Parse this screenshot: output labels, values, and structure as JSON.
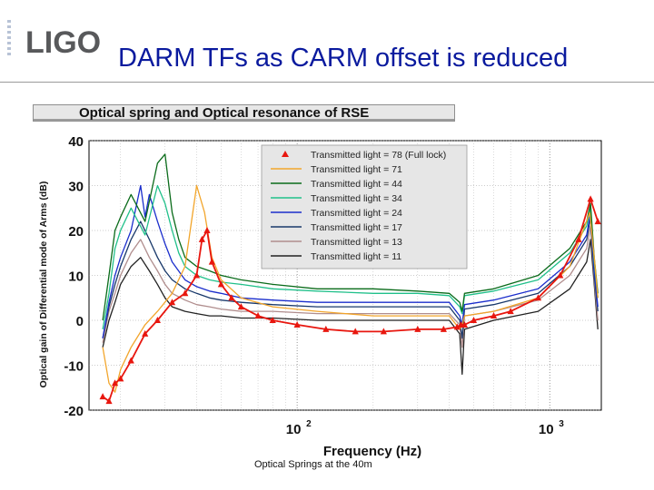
{
  "slide": {
    "logo_text": "LIGO",
    "title": "DARM TFs as CARM offset is reduced",
    "caption": "Optical Springs at the 40m"
  },
  "chart_data": {
    "type": "line",
    "title": "Optical spring and Optical resonance of RSE",
    "xlabel": "Frequency (Hz)",
    "ylabel": "Optical gain of Differential mode of Arms (dB)",
    "xscale": "log",
    "xlim": [
      15,
      1600
    ],
    "ylim": [
      -20,
      40
    ],
    "yticks": [
      40,
      30,
      20,
      10,
      0,
      -10,
      -20
    ],
    "xticks": [
      {
        "value": 100,
        "label": "10",
        "exp": "2"
      },
      {
        "value": 1000,
        "label": "10",
        "exp": "3"
      }
    ],
    "grid": true,
    "legend_position": "top-right",
    "series": [
      {
        "name": "Transmitted light = 78 (Full lock)",
        "color": "#e8170f",
        "marker": "triangle",
        "x": [
          17,
          18,
          19,
          20,
          22,
          25,
          28,
          32,
          36,
          40,
          42,
          44,
          46,
          50,
          55,
          60,
          70,
          80,
          100,
          130,
          170,
          220,
          300,
          380,
          430,
          445,
          460,
          500,
          600,
          700,
          900,
          1100,
          1300,
          1450,
          1550
        ],
        "y": [
          -17,
          -18,
          -14,
          -13,
          -9,
          -3,
          0,
          4,
          6,
          10,
          18,
          20,
          13,
          8,
          5,
          3,
          1,
          0,
          -1,
          -2,
          -2.5,
          -2.5,
          -2,
          -2,
          -1.5,
          -1,
          -1,
          0,
          1,
          2,
          5,
          10,
          18,
          27,
          22
        ]
      },
      {
        "name": "Transmitted light = 71",
        "color": "#f2a52b",
        "marker": "none",
        "x": [
          17,
          18,
          19,
          20,
          22,
          25,
          28,
          32,
          36,
          40,
          43,
          46,
          50,
          60,
          80,
          120,
          200,
          300,
          400,
          440,
          450,
          460,
          600,
          900,
          1200,
          1440,
          1500,
          1550
        ],
        "y": [
          -6,
          -14,
          -16,
          -11,
          -6,
          -1,
          2,
          6,
          12,
          30,
          24,
          14,
          9,
          5,
          3,
          2,
          1,
          1,
          1,
          -2,
          -1,
          1,
          2,
          5,
          12,
          24,
          14,
          5
        ]
      },
      {
        "name": "Transmitted light = 44",
        "color": "#0a6b1a",
        "marker": "none",
        "x": [
          17,
          18,
          19,
          20,
          22,
          25,
          28,
          30,
          32,
          34,
          36,
          40,
          45,
          50,
          60,
          80,
          120,
          200,
          300,
          400,
          440,
          450,
          460,
          600,
          900,
          1200,
          1400,
          1450,
          1500,
          1550
        ],
        "y": [
          0,
          10,
          20,
          23,
          28,
          22,
          35,
          37,
          24,
          18,
          14,
          12,
          11,
          10,
          9,
          8,
          7,
          7,
          6.5,
          6,
          4,
          2,
          6,
          7,
          10,
          16,
          22,
          26,
          14,
          6
        ]
      },
      {
        "name": "Transmitted light = 34",
        "color": "#20c08a",
        "marker": "none",
        "x": [
          17,
          18,
          19,
          20,
          22,
          25,
          28,
          30,
          32,
          34,
          36,
          40,
          45,
          50,
          60,
          80,
          120,
          200,
          300,
          400,
          440,
          450,
          460,
          600,
          900,
          1200,
          1400,
          1450,
          1500,
          1550
        ],
        "y": [
          -2,
          6,
          16,
          20,
          25,
          19,
          30,
          26,
          20,
          15,
          12,
          10,
          9,
          8.5,
          8,
          7,
          6.5,
          6,
          6,
          5.5,
          3,
          1.5,
          5.5,
          6.5,
          9,
          15,
          21,
          25,
          13,
          5
        ]
      },
      {
        "name": "Transmitted light = 24",
        "color": "#1b2ecc",
        "marker": "none",
        "x": [
          17,
          18,
          19,
          20,
          22,
          24,
          25,
          26,
          28,
          30,
          32,
          36,
          40,
          45,
          50,
          60,
          80,
          120,
          200,
          300,
          400,
          440,
          450,
          460,
          600,
          900,
          1200,
          1400,
          1450,
          1500,
          1550
        ],
        "y": [
          -4,
          4,
          10,
          14,
          20,
          30,
          23,
          28,
          22,
          17,
          13,
          9,
          7.5,
          6.5,
          6,
          5,
          4.5,
          4,
          4,
          4,
          4,
          1,
          -1,
          3.5,
          4.5,
          7,
          13,
          19,
          24,
          11,
          3
        ]
      },
      {
        "name": "Transmitted light = 17",
        "color": "#18386a",
        "marker": "none",
        "x": [
          17,
          18,
          19,
          20,
          22,
          24,
          26,
          28,
          30,
          32,
          36,
          40,
          45,
          50,
          60,
          80,
          120,
          200,
          300,
          400,
          440,
          450,
          460,
          600,
          900,
          1200,
          1400,
          1450,
          1500,
          1550
        ],
        "y": [
          -4,
          3,
          8,
          12,
          18,
          22,
          18,
          14,
          11,
          9,
          7,
          6,
          5,
          4.5,
          4,
          3.5,
          3,
          3,
          3,
          3,
          0,
          -4,
          2.5,
          3.5,
          6,
          12,
          18,
          23,
          10,
          2
        ]
      },
      {
        "name": "Transmitted light = 13",
        "color": "#b08d8d",
        "marker": "none",
        "x": [
          17,
          18,
          19,
          20,
          22,
          24,
          26,
          28,
          30,
          32,
          36,
          40,
          45,
          50,
          60,
          80,
          120,
          200,
          300,
          400,
          440,
          450,
          460,
          600,
          900,
          1200,
          1400,
          1450,
          1500,
          1550
        ],
        "y": [
          -5,
          2,
          6,
          10,
          15,
          18,
          14,
          11,
          8,
          6,
          4.5,
          3.5,
          3,
          2.5,
          2,
          2,
          1.5,
          1.5,
          1.5,
          1.5,
          -1,
          -6,
          1,
          2,
          4.5,
          10,
          16,
          21,
          9,
          0
        ]
      },
      {
        "name": "Transmitted light = 11",
        "color": "#222222",
        "marker": "none",
        "x": [
          17,
          18,
          19,
          20,
          22,
          24,
          26,
          28,
          30,
          32,
          36,
          40,
          45,
          50,
          60,
          80,
          120,
          200,
          300,
          400,
          440,
          450,
          460,
          600,
          900,
          1200,
          1400,
          1450,
          1500,
          1550
        ],
        "y": [
          -6,
          0,
          4,
          8,
          12,
          14,
          11,
          8,
          5,
          3,
          2,
          1.5,
          1,
          1,
          0.5,
          0.5,
          0,
          0,
          0,
          0,
          -3,
          -12,
          -2,
          0,
          2,
          7,
          13,
          18,
          8,
          -2
        ]
      }
    ]
  }
}
